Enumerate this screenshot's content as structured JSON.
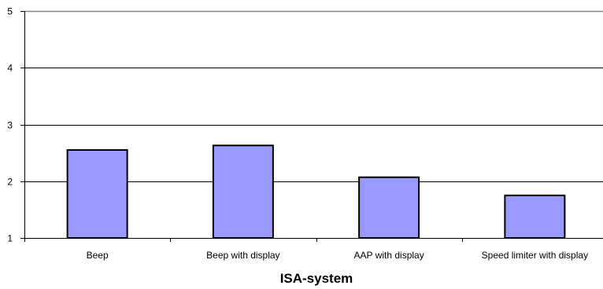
{
  "chart_data": {
    "type": "bar",
    "title": "",
    "xlabel": "ISA-system",
    "ylabel": "",
    "categories": [
      "Beep",
      "Beep with display",
      "AAP with display",
      "Speed limiter with display"
    ],
    "values": [
      2.55,
      2.63,
      2.07,
      1.75
    ],
    "ylim": [
      1,
      5
    ],
    "yticks": [
      1,
      2,
      3,
      4,
      5
    ],
    "grid": true,
    "legend": "none",
    "colors": {
      "bar_fill": "#9999ff",
      "bar_stroke": "#000000",
      "gridline": "#000000",
      "top_border": "#808080",
      "axis": "#000000"
    }
  }
}
